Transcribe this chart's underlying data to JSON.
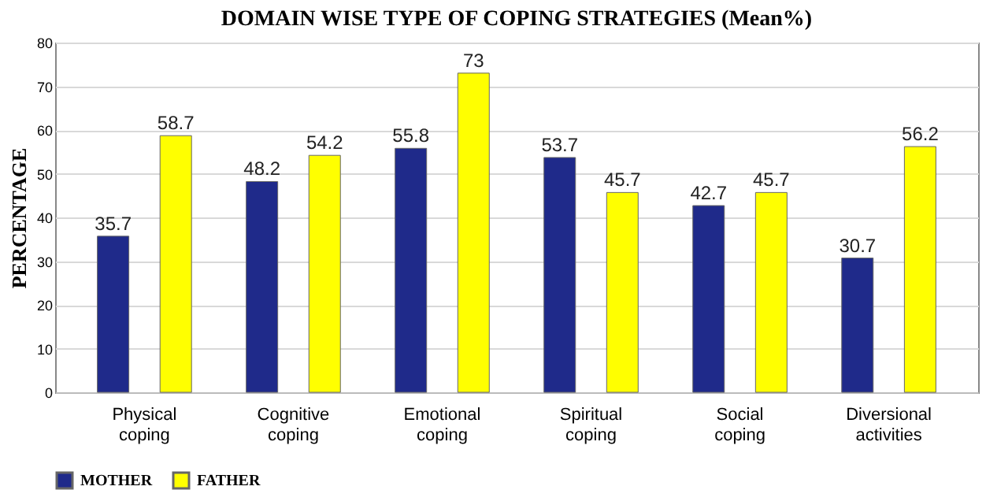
{
  "chart_data": {
    "type": "bar",
    "title": "DOMAIN WISE TYPE OF COPING STRATEGIES (Mean%)",
    "ylabel": "PERCENTAGE",
    "categories": [
      "Physical coping",
      "Cognitive coping",
      "Emotional coping",
      "Spiritual coping",
      "Social coping",
      "Diversional activities"
    ],
    "series": [
      {
        "name": "MOTHER",
        "color": "#1f2a8a",
        "values": [
          35.7,
          48.2,
          55.8,
          53.7,
          42.7,
          30.7
        ]
      },
      {
        "name": "FATHER",
        "color": "#ffff00",
        "values": [
          58.7,
          54.2,
          73,
          45.7,
          45.7,
          56.2
        ]
      }
    ],
    "ylim": [
      0,
      80
    ],
    "yticks": [
      0,
      10,
      20,
      30,
      40,
      50,
      60,
      70,
      80
    ],
    "grid": "y",
    "legend": "bottom",
    "data_labels": true
  }
}
